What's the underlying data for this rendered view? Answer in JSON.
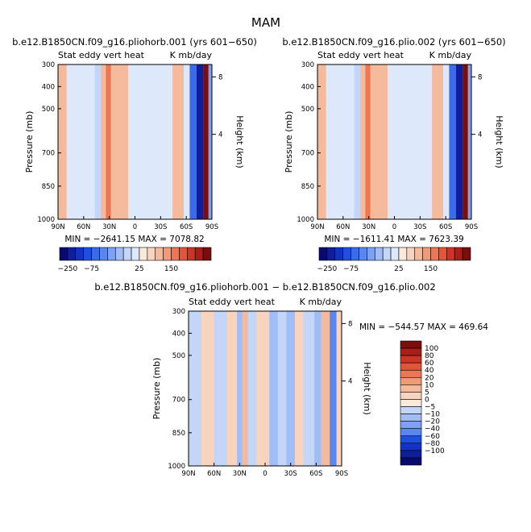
{
  "figure_title": "MAM",
  "colors": {
    "neg_palette": [
      "#0a0a6e",
      "#0f1e9c",
      "#1433c4",
      "#1f4fe0",
      "#3a6be8",
      "#5a87ee",
      "#7ea1f2",
      "#a2bdf5",
      "#c3d6f8",
      "#dde9fb"
    ],
    "pos_palette": [
      "#fbe9dc",
      "#f8d3bd",
      "#f5b99c",
      "#f29a78",
      "#ec7755",
      "#e25538",
      "#cc3526",
      "#a91e18",
      "#7c0d0d"
    ]
  },
  "chart_data": [
    {
      "id": "panel1",
      "type": "heatmap",
      "title": "b.e12.B1850CN.f09_g16.pliohorb.001 (yrs 601−650)",
      "subtitle_left": "Stat eddy vert heat",
      "subtitle_right": "K mb/day",
      "ylabel": "Pressure (mb)",
      "ylabel_right": "Height (km)",
      "xticks": [
        "90N",
        "60N",
        "30N",
        "0",
        "30S",
        "60S",
        "90S"
      ],
      "xrange": [
        90,
        -90
      ],
      "yticks": [
        "300",
        "400",
        "500",
        "700",
        "850",
        "1000"
      ],
      "ytick_values": [
        300,
        400,
        500,
        700,
        850,
        1000
      ],
      "yrange": [
        300,
        1000
      ],
      "right_ticks": [
        "8",
        "4"
      ],
      "right_tick_pressures": [
        356,
        616
      ],
      "minmax_text": "MIN = −2641.15   MAX = 7078.82",
      "colorbar_labels": [
        "−250",
        "−75",
        "25",
        "150"
      ],
      "features": [
        {
          "lat_range": [
            90,
            80
          ],
          "value": 5
        },
        {
          "lat_range": [
            47,
            40
          ],
          "value": -8
        },
        {
          "lat_range": [
            40,
            34
          ],
          "value": 5
        },
        {
          "lat_range": [
            34,
            28
          ],
          "value": 60
        },
        {
          "lat_range": [
            28,
            18
          ],
          "value": 10
        },
        {
          "lat_range": [
            18,
            8
          ],
          "value": 5
        },
        {
          "lat_range": [
            8,
            -44
          ],
          "value": -5
        },
        {
          "lat_range": [
            -44,
            -57
          ],
          "value": 5
        },
        {
          "lat_range": [
            -57,
            -64
          ],
          "value": -5
        },
        {
          "lat_range": [
            -64,
            -72
          ],
          "value": -100
        },
        {
          "lat_range": [
            -72,
            -80
          ],
          "value": -250
        },
        {
          "lat_range": [
            -80,
            -86
          ],
          "value": 150
        },
        {
          "lat_range": [
            -86,
            -90
          ],
          "value": -40
        }
      ]
    },
    {
      "id": "panel2",
      "type": "heatmap",
      "title": "b.e12.B1850CN.f09_g16.plio.002 (yrs 601−650)",
      "subtitle_left": "Stat eddy vert heat",
      "subtitle_right": "K mb/day",
      "ylabel": "Pressure (mb)",
      "ylabel_right": "Height (km)",
      "xticks": [
        "90N",
        "60N",
        "30N",
        "0",
        "30S",
        "60S",
        "90S"
      ],
      "xrange": [
        90,
        -90
      ],
      "yticks": [
        "300",
        "400",
        "500",
        "700",
        "850",
        "1000"
      ],
      "ytick_values": [
        300,
        400,
        500,
        700,
        850,
        1000
      ],
      "yrange": [
        300,
        1000
      ],
      "right_ticks": [
        "8",
        "4"
      ],
      "right_tick_pressures": [
        356,
        616
      ],
      "minmax_text": "MIN = −1611.41   MAX = 7623.39",
      "colorbar_labels": [
        "−250",
        "−75",
        "25",
        "150"
      ],
      "features": [
        {
          "lat_range": [
            90,
            80
          ],
          "value": 5
        },
        {
          "lat_range": [
            47,
            40
          ],
          "value": -8
        },
        {
          "lat_range": [
            40,
            34
          ],
          "value": 5
        },
        {
          "lat_range": [
            34,
            28
          ],
          "value": 60
        },
        {
          "lat_range": [
            28,
            18
          ],
          "value": 10
        },
        {
          "lat_range": [
            18,
            8
          ],
          "value": 5
        },
        {
          "lat_range": [
            8,
            -44
          ],
          "value": -5
        },
        {
          "lat_range": [
            -44,
            -57
          ],
          "value": 5
        },
        {
          "lat_range": [
            -57,
            -64
          ],
          "value": -5
        },
        {
          "lat_range": [
            -64,
            -72
          ],
          "value": -100
        },
        {
          "lat_range": [
            -72,
            -80
          ],
          "value": -250
        },
        {
          "lat_range": [
            -80,
            -86
          ],
          "value": 150
        },
        {
          "lat_range": [
            -86,
            -90
          ],
          "value": -40
        }
      ]
    },
    {
      "id": "diff",
      "type": "heatmap",
      "title": "b.e12.B1850CN.f09_g16.pliohorb.001 − b.e12.B1850CN.f09_g16.plio.002",
      "subtitle_left": "Stat eddy vert heat",
      "subtitle_right": "K mb/day",
      "ylabel": "Pressure (mb)",
      "ylabel_right": "Height (km)",
      "xticks": [
        "90N",
        "60N",
        "30N",
        "0",
        "30S",
        "60S",
        "90S"
      ],
      "xrange": [
        90,
        -90
      ],
      "yticks": [
        "300",
        "400",
        "500",
        "700",
        "850",
        "1000"
      ],
      "ytick_values": [
        300,
        400,
        500,
        700,
        850,
        1000
      ],
      "yrange": [
        300,
        1000
      ],
      "right_ticks": [
        "8",
        "4"
      ],
      "right_tick_pressures": [
        356,
        616
      ],
      "minmax_text": "MIN = −544.57   MAX = 469.64",
      "colorbar_labels": [
        "100",
        "80",
        "60",
        "40",
        "20",
        "10",
        "5",
        "0",
        "−5",
        "−10",
        "−20",
        "−40",
        "−60",
        "−80",
        "−100"
      ],
      "features": [
        {
          "lat_range": [
            90,
            75
          ],
          "value": -5
        },
        {
          "lat_range": [
            75,
            60
          ],
          "value": 5
        },
        {
          "lat_range": [
            60,
            45
          ],
          "value": -5
        },
        {
          "lat_range": [
            45,
            33
          ],
          "value": 5
        },
        {
          "lat_range": [
            33,
            27
          ],
          "value": -10
        },
        {
          "lat_range": [
            27,
            20
          ],
          "value": 10
        },
        {
          "lat_range": [
            20,
            10
          ],
          "value": -5
        },
        {
          "lat_range": [
            10,
            -5
          ],
          "value": 5
        },
        {
          "lat_range": [
            -5,
            -15
          ],
          "value": -10
        },
        {
          "lat_range": [
            -15,
            -25
          ],
          "value": -5
        },
        {
          "lat_range": [
            -25,
            -35
          ],
          "value": -10
        },
        {
          "lat_range": [
            -35,
            -45
          ],
          "value": 5
        },
        {
          "lat_range": [
            -45,
            -58
          ],
          "value": -5
        },
        {
          "lat_range": [
            -58,
            -66
          ],
          "value": -10
        },
        {
          "lat_range": [
            -66,
            -76
          ],
          "value": 10
        },
        {
          "lat_range": [
            -76,
            -84
          ],
          "value": -40
        },
        {
          "lat_range": [
            -84,
            -90
          ],
          "value": 5
        }
      ]
    }
  ]
}
